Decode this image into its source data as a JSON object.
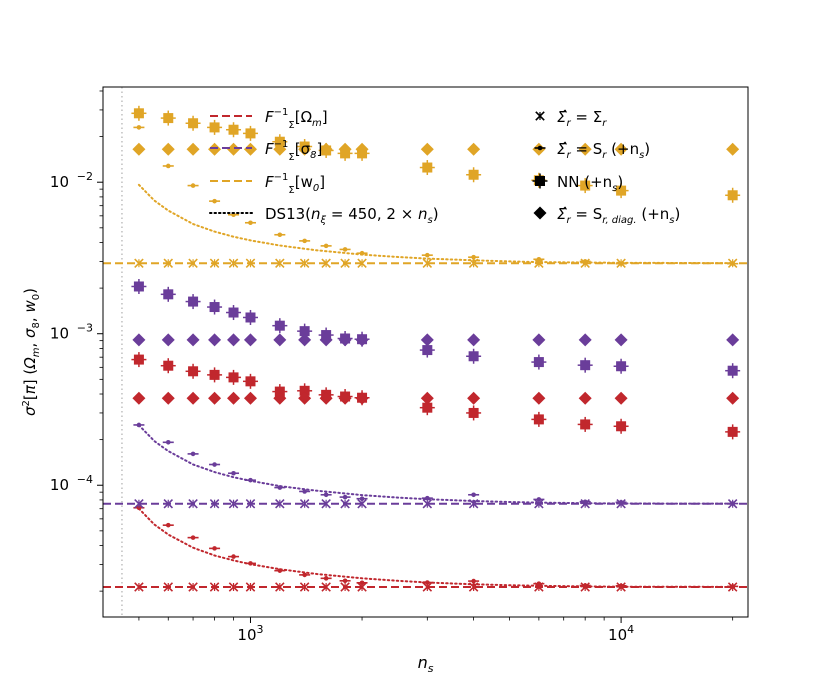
{
  "chart_data": {
    "type": "scatter",
    "xscale": "log",
    "yscale": "log",
    "xlim": [
      400,
      22000
    ],
    "ylim": [
      1.35e-05,
      0.0425
    ],
    "xlabel": "n_s",
    "ylabel": "σ²[π] (Ω_m, σ_8, w_0)",
    "x_ticks": [
      {
        "value": 1000,
        "base": "10",
        "exp": "3"
      },
      {
        "value": 10000,
        "base": "10",
        "exp": "4"
      }
    ],
    "y_ticks": [
      {
        "value": 0.0001,
        "base": "10",
        "exp": "−4"
      },
      {
        "value": 0.001,
        "base": "10",
        "exp": "−3"
      },
      {
        "value": 0.01,
        "base": "10",
        "exp": "−2"
      }
    ],
    "vline_x": 450,
    "colors": {
      "Omega_m": "#c1272d",
      "sigma_8": "#6a3d9a",
      "w_0": "#e0a526"
    },
    "x": [
      500,
      600,
      700,
      800,
      900,
      1000,
      1200,
      1400,
      1600,
      1800,
      2000,
      3000,
      4000,
      6000,
      8000,
      10000,
      20000
    ],
    "fisher_bounds": {
      "Omega_m": 2.13e-05,
      "sigma_8": 7.55e-05,
      "w_0": 0.00292
    },
    "series": [
      {
        "param": "Omega_m",
        "estimator": "true",
        "values": [
          2.13e-05,
          2.13e-05,
          2.13e-05,
          2.13e-05,
          2.13e-05,
          2.13e-05,
          2.13e-05,
          2.13e-05,
          2.13e-05,
          2.13e-05,
          2.13e-05,
          2.13e-05,
          2.13e-05,
          2.13e-05,
          2.13e-05,
          2.13e-05,
          2.13e-05
        ]
      },
      {
        "param": "Omega_m",
        "estimator": "sample",
        "values": [
          7.1e-05,
          5.45e-05,
          4.51e-05,
          3.83e-05,
          3.38e-05,
          3.05e-05,
          2.73e-05,
          2.56e-05,
          2.43e-05,
          2.34e-05,
          2.27e-05,
          2.28e-05,
          2.33e-05,
          2.24e-05,
          2.18e-05,
          2.17e-05,
          2.15e-05
        ]
      },
      {
        "param": "Omega_m",
        "estimator": "nn",
        "values": [
          0.000675,
          0.000615,
          0.000565,
          0.000535,
          0.000515,
          0.000485,
          0.000415,
          0.00042,
          0.000395,
          0.000385,
          0.000378,
          0.000325,
          0.0003,
          0.000272,
          0.000252,
          0.000245,
          0.000225
        ]
      },
      {
        "param": "Omega_m",
        "estimator": "diag",
        "values": [
          0.000375,
          0.000375,
          0.000375,
          0.000375,
          0.000375,
          0.000375,
          0.000375,
          0.000375,
          0.000375,
          0.000375,
          0.000375,
          0.000375,
          0.000375,
          0.000375,
          0.000375,
          0.000375,
          0.000375
        ]
      },
      {
        "param": "sigma_8",
        "estimator": "true",
        "values": [
          7.55e-05,
          7.55e-05,
          7.55e-05,
          7.55e-05,
          7.55e-05,
          7.55e-05,
          7.55e-05,
          7.55e-05,
          7.55e-05,
          7.55e-05,
          7.55e-05,
          7.55e-05,
          7.55e-05,
          7.55e-05,
          7.55e-05,
          7.55e-05,
          7.55e-05
        ]
      },
      {
        "param": "sigma_8",
        "estimator": "sample",
        "values": [
          0.00025,
          0.000192,
          0.000161,
          0.000137,
          0.00012,
          0.000108,
          9.65e-05,
          9.1e-05,
          8.65e-05,
          8.35e-05,
          8.15e-05,
          8.22e-05,
          8.65e-05,
          8.06e-05,
          7.78e-05,
          7.72e-05,
          7.57e-05
        ]
      },
      {
        "param": "sigma_8",
        "estimator": "nn",
        "values": [
          0.00205,
          0.00182,
          0.00163,
          0.0015,
          0.00138,
          0.00128,
          0.00113,
          0.00104,
          0.00098,
          0.00093,
          0.00092,
          0.00078,
          0.00071,
          0.00065,
          0.00062,
          0.00061,
          0.00057
        ]
      },
      {
        "param": "sigma_8",
        "estimator": "diag",
        "values": [
          0.00091,
          0.00091,
          0.00091,
          0.00091,
          0.00091,
          0.00091,
          0.00091,
          0.00091,
          0.00091,
          0.00091,
          0.00091,
          0.00091,
          0.00091,
          0.00091,
          0.00091,
          0.00091,
          0.00091
        ]
      },
      {
        "param": "w_0",
        "estimator": "true",
        "values": [
          0.00292,
          0.00292,
          0.00292,
          0.00292,
          0.00292,
          0.00292,
          0.00292,
          0.00292,
          0.00292,
          0.00292,
          0.00292,
          0.00292,
          0.00292,
          0.00292,
          0.00292,
          0.00292,
          0.00292
        ]
      },
      {
        "param": "w_0",
        "estimator": "sample",
        "values": [
          0.023,
          0.0128,
          0.0095,
          0.0075,
          0.0061,
          0.0054,
          0.0045,
          0.0041,
          0.0038,
          0.0036,
          0.0034,
          0.0033,
          0.0032,
          0.0031,
          0.003,
          0.0029,
          0.0029
        ]
      },
      {
        "param": "w_0",
        "estimator": "nn",
        "values": [
          0.0285,
          0.0265,
          0.0245,
          0.023,
          0.0222,
          0.021,
          0.0185,
          0.0172,
          0.0162,
          0.0155,
          0.0155,
          0.0125,
          0.0112,
          0.0103,
          0.0095,
          0.0088,
          0.0082
        ]
      },
      {
        "param": "w_0",
        "estimator": "diag",
        "values": [
          0.0165,
          0.0165,
          0.0165,
          0.0165,
          0.0165,
          0.0165,
          0.0165,
          0.0165,
          0.0165,
          0.0165,
          0.0165,
          0.0165,
          0.0165,
          0.0165,
          0.0165,
          0.0165,
          0.0165
        ]
      }
    ],
    "ds13": {
      "x": [
        500,
        550,
        600,
        700,
        800,
        900,
        1000,
        1200,
        1500,
        2000,
        2500,
        3000,
        4000,
        5000,
        6000,
        8000,
        10000,
        15000,
        20000
      ],
      "Omega_m": [
        7.01e-05,
        5.51e-05,
        4.72e-05,
        3.87e-05,
        3.44e-05,
        3.19e-05,
        3.01e-05,
        2.79e-05,
        2.6e-05,
        2.43e-05,
        2.34e-05,
        2.28e-05,
        2.22e-05,
        2.19e-05,
        2.17e-05,
        2.15e-05,
        2.14e-05,
        2.14e-05,
        2.13e-05
      ],
      "sigma_8": [
        0.000249,
        0.000196,
        0.000168,
        0.000137,
        0.000122,
        0.000113,
        0.000107,
        9.87e-05,
        9.21e-05,
        8.61e-05,
        8.29e-05,
        8.09e-05,
        7.87e-05,
        7.75e-05,
        7.68e-05,
        7.61e-05,
        7.58e-05,
        7.57e-05,
        7.56e-05
      ],
      "w_0": [
        0.00961,
        0.00757,
        0.0065,
        0.0053,
        0.00472,
        0.00437,
        0.00413,
        0.00382,
        0.00356,
        0.00333,
        0.00321,
        0.00313,
        0.00305,
        0.003,
        0.00297,
        0.00295,
        0.00294,
        0.00293,
        0.00292
      ]
    },
    "legend_left": [
      {
        "key": "fisher_Omega_m",
        "style": "dashed",
        "color": "#c1272d",
        "pre": "F",
        "sub1": "Σ",
        "sup": "−1",
        "bracket": "[Ω",
        "sub2": "m",
        "close": "]"
      },
      {
        "key": "fisher_sigma_8",
        "style": "dashed",
        "color": "#6a3d9a",
        "pre": "F",
        "sub1": "Σ",
        "sup": "−1",
        "bracket": "[σ",
        "sub2": "8",
        "close": "]"
      },
      {
        "key": "fisher_w_0",
        "style": "dashed",
        "color": "#e0a526",
        "pre": "F",
        "sub1": "Σ",
        "sup": "−1",
        "bracket": "[w",
        "sub2": "0",
        "close": "]"
      },
      {
        "key": "ds13",
        "style": "dotted",
        "color": "#000000",
        "text_a": "DS13(",
        "n": "n",
        "nsub": "ξ",
        "text_b": " = 450, 2 × ",
        "n2": "n",
        "n2sub": "s",
        "text_c": ")"
      }
    ],
    "legend_right": [
      {
        "key": "true_cov",
        "marker": "x",
        "a": "Σ̂",
        "asub": "r",
        "b": " = Σ",
        "bsub": "r",
        "c": ""
      },
      {
        "key": "sample_cov",
        "marker": "dot",
        "a": "Σ̂",
        "asub": "r",
        "b": " = S",
        "bsub": "r",
        "c": " (+n",
        "csub": "s",
        "d": ")"
      },
      {
        "key": "nn",
        "marker": "square",
        "a": "NN",
        "asub": "",
        "b": " (+n",
        "bsub": "s",
        "c": ")"
      },
      {
        "key": "diag",
        "marker": "diamond",
        "a": "Σ̂",
        "asub": "r",
        "b": " = S",
        "bsub": "r, diag.",
        "c": " (+n",
        "csub": "s",
        "d": ")"
      }
    ]
  }
}
